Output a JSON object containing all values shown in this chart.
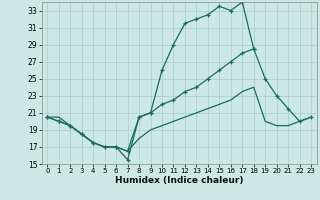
{
  "xlabel": "Humidex (Indice chaleur)",
  "bg_color": "#cce8e4",
  "grid_color": "#aaccc8",
  "line_color": "#1a6b60",
  "xlim": [
    -0.5,
    23.5
  ],
  "ylim": [
    15,
    34
  ],
  "xticks": [
    0,
    1,
    2,
    3,
    4,
    5,
    6,
    7,
    8,
    9,
    10,
    11,
    12,
    13,
    14,
    15,
    16,
    17,
    18,
    19,
    20,
    21,
    22,
    23
  ],
  "yticks": [
    15,
    17,
    19,
    21,
    23,
    25,
    27,
    29,
    31,
    33
  ],
  "series1_x": [
    0,
    1,
    2,
    3,
    4,
    5,
    6,
    7,
    8,
    9,
    10,
    11,
    12,
    13,
    14,
    15,
    16,
    17,
    18
  ],
  "series1_y": [
    20.5,
    20.0,
    19.5,
    18.5,
    17.5,
    17.0,
    17.0,
    15.5,
    20.5,
    21.0,
    26.0,
    29.0,
    31.5,
    32.0,
    32.5,
    33.5,
    33.0,
    34.0,
    28.5
  ],
  "series2_x": [
    0,
    1,
    2,
    3,
    4,
    5,
    6,
    7,
    8,
    9,
    10,
    11,
    12,
    13,
    14,
    15,
    16,
    17,
    18,
    19,
    20,
    21,
    22,
    23
  ],
  "series2_y": [
    20.5,
    20.0,
    19.5,
    18.5,
    17.5,
    17.0,
    17.0,
    16.5,
    20.5,
    21.0,
    22.0,
    22.5,
    23.5,
    24.0,
    25.0,
    26.0,
    27.0,
    28.0,
    28.5,
    25.0,
    23.0,
    21.5,
    20.0,
    20.5
  ],
  "series3_x": [
    0,
    1,
    2,
    3,
    4,
    5,
    6,
    7,
    8,
    9,
    10,
    11,
    12,
    13,
    14,
    15,
    16,
    17,
    18,
    19,
    20,
    21,
    22,
    23
  ],
  "series3_y": [
    20.5,
    20.5,
    19.5,
    18.5,
    17.5,
    17.0,
    17.0,
    16.5,
    18.0,
    19.0,
    19.5,
    20.0,
    20.5,
    21.0,
    21.5,
    22.0,
    22.5,
    23.5,
    24.0,
    20.0,
    19.5,
    19.5,
    20.0,
    20.5
  ]
}
